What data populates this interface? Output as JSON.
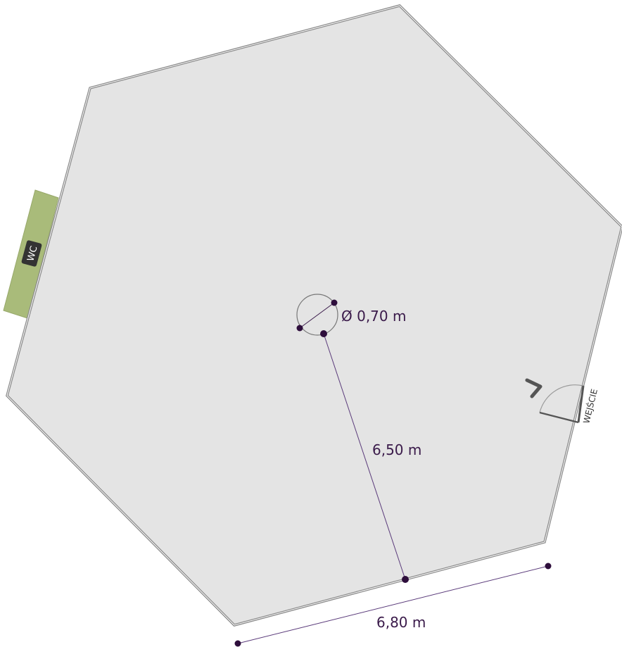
{
  "floor_plan": {
    "center_diameter_label": "Ø 0,70 m",
    "radius_label": "6,50 m",
    "side_label": "6,80 m",
    "entrance_label": "WEJŚCIE",
    "wc_label": "WC"
  },
  "colors": {
    "floor_fill": "#e4e4e4",
    "wall_stroke": "#8a8a8a",
    "dimension_color": "#3a1a4a",
    "wc_block": "#a9bb7a",
    "wc_badge": "#333333"
  },
  "icons": {
    "entrance_arrow": "chevron-right-icon"
  }
}
